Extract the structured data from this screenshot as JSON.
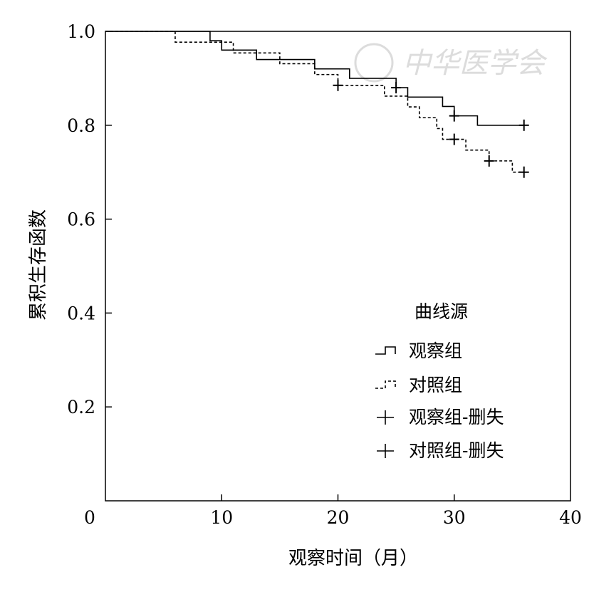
{
  "watermark": {
    "text": "中华医学会"
  },
  "chart_data": {
    "type": "line",
    "subtype": "kaplan-meier-step",
    "xlabel": "观察时间（月）",
    "ylabel": "累积生存函数",
    "xlim": [
      0,
      40
    ],
    "ylim": [
      0,
      1.0
    ],
    "xticks": [
      0,
      10,
      20,
      30,
      40
    ],
    "yticks": [
      0.2,
      0.4,
      0.6,
      0.8,
      1.0
    ],
    "xtick_labels": [
      "0",
      "10",
      "20",
      "30",
      "40"
    ],
    "ytick_labels": [
      "0.2",
      "0.4",
      "0.6",
      "0.8",
      "1.0"
    ],
    "grid": false,
    "legend": {
      "title": "曲线源",
      "position": "right-center",
      "entries": [
        "观察组",
        "对照组",
        "观察组-删失",
        "对照组-删失"
      ]
    },
    "series": [
      {
        "name": "观察组",
        "style": "solid",
        "color": "#000000",
        "x": [
          0,
          9,
          10,
          13,
          18,
          21,
          25,
          26,
          29,
          30,
          32,
          36
        ],
        "y": [
          1.0,
          0.98,
          0.96,
          0.94,
          0.92,
          0.9,
          0.88,
          0.86,
          0.84,
          0.82,
          0.8,
          0.8
        ]
      },
      {
        "name": "对照组",
        "style": "dashed",
        "color": "#000000",
        "x": [
          0,
          6,
          11,
          15,
          18,
          20,
          24,
          26,
          27,
          28.5,
          29,
          31,
          33,
          35,
          36
        ],
        "y": [
          1.0,
          0.977,
          0.954,
          0.931,
          0.908,
          0.885,
          0.862,
          0.839,
          0.816,
          0.793,
          0.77,
          0.747,
          0.724,
          0.7,
          0.7
        ]
      }
    ],
    "censored": [
      {
        "name": "观察组-删失",
        "points": [
          {
            "x": 25,
            "y": 0.88
          },
          {
            "x": 30,
            "y": 0.82
          },
          {
            "x": 36,
            "y": 0.8
          }
        ]
      },
      {
        "name": "对照组-删失",
        "points": [
          {
            "x": 20,
            "y": 0.885
          },
          {
            "x": 30,
            "y": 0.77
          },
          {
            "x": 33,
            "y": 0.724
          },
          {
            "x": 36,
            "y": 0.7
          }
        ]
      }
    ]
  }
}
